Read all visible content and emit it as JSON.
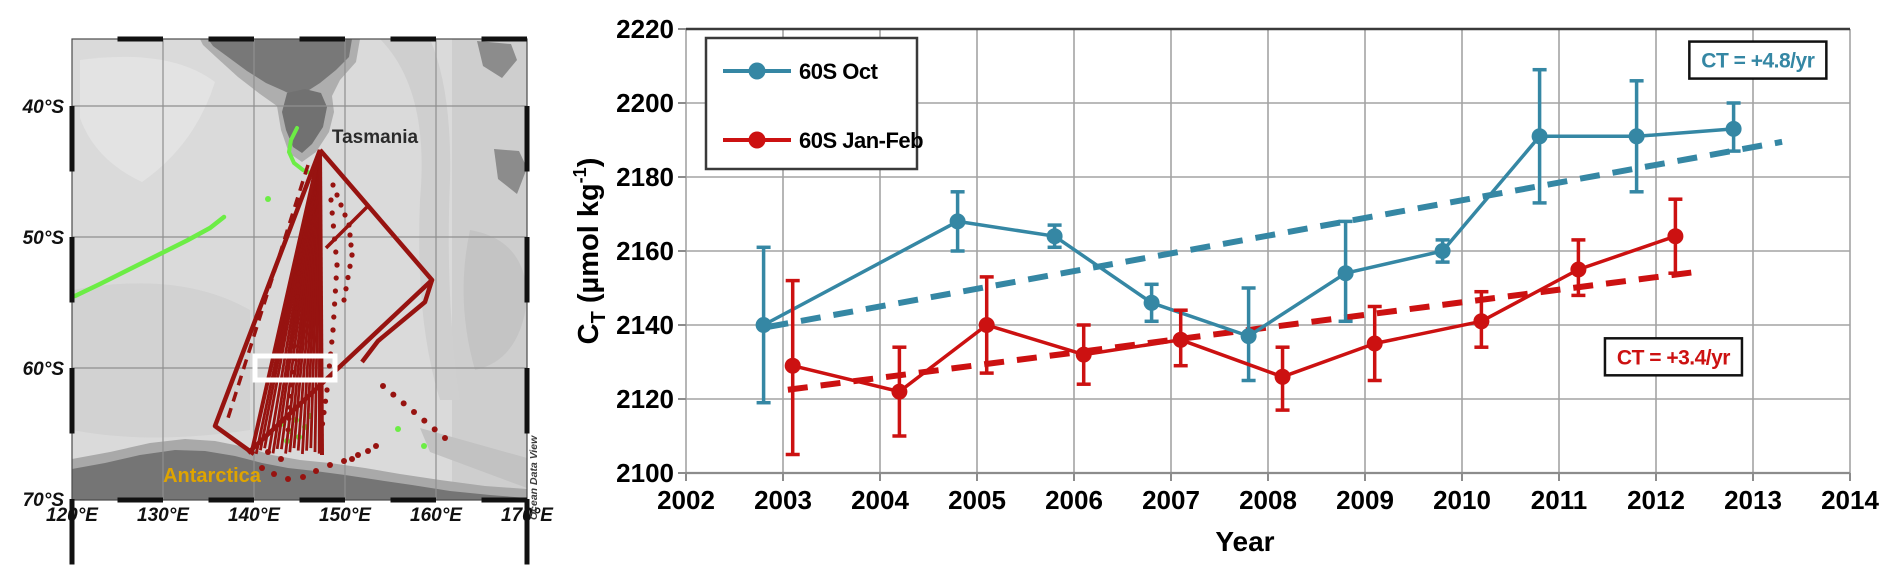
{
  "map": {
    "region_labels": {
      "tasmania": "Tasmania",
      "antarctica": "Antarctica"
    },
    "attribution": "Ocean Data View",
    "lat_ticks": [
      "40°S",
      "50°S",
      "60°S",
      "70°S"
    ],
    "lon_ticks": [
      "120°E",
      "130°E",
      "140°E",
      "150°E",
      "160°E",
      "170°E"
    ],
    "colors": {
      "ocean": "#dadada",
      "land": "#7b7b7b",
      "shelf": "#aaaaaa",
      "track": "#971310",
      "front": "#6ced45",
      "highlight_box": "#ffffff",
      "antarctica_label": "#dfa400",
      "tasmania_label": "#2b2b2b"
    }
  },
  "chart_data": {
    "type": "line",
    "title": "",
    "xlabel": "Year",
    "ylabel_parts": [
      "C",
      "T",
      " (µmol kg",
      "-1",
      ")"
    ],
    "xlim": [
      2002,
      2014
    ],
    "ylim": [
      2100,
      2220
    ],
    "xticks": [
      2002,
      2003,
      2004,
      2005,
      2006,
      2007,
      2008,
      2009,
      2010,
      2011,
      2012,
      2013,
      2014
    ],
    "yticks": [
      2100,
      2120,
      2140,
      2160,
      2180,
      2200,
      2220
    ],
    "grid": true,
    "legend_position": "top-left",
    "series": [
      {
        "name": "60S Oct",
        "color": "#3587a4",
        "points": [
          {
            "x": 2002.8,
            "y": 2140,
            "lo": 2119,
            "hi": 2161
          },
          {
            "x": 2004.8,
            "y": 2168,
            "lo": 2160,
            "hi": 2176
          },
          {
            "x": 2005.8,
            "y": 2164,
            "lo": 2161,
            "hi": 2167
          },
          {
            "x": 2006.8,
            "y": 2146,
            "lo": 2141,
            "hi": 2151
          },
          {
            "x": 2007.8,
            "y": 2137,
            "lo": 2125,
            "hi": 2150
          },
          {
            "x": 2008.8,
            "y": 2154,
            "lo": 2141,
            "hi": 2168
          },
          {
            "x": 2009.8,
            "y": 2160,
            "lo": 2157,
            "hi": 2163
          },
          {
            "x": 2010.8,
            "y": 2191,
            "lo": 2173,
            "hi": 2209
          },
          {
            "x": 2011.8,
            "y": 2191,
            "lo": 2176,
            "hi": 2206
          },
          {
            "x": 2012.8,
            "y": 2193,
            "lo": 2187,
            "hi": 2200
          }
        ]
      },
      {
        "name": "60S Jan-Feb",
        "color": "#cc1111",
        "points": [
          {
            "x": 2003.1,
            "y": 2129,
            "lo": 2105,
            "hi": 2152
          },
          {
            "x": 2004.2,
            "y": 2122,
            "lo": 2110,
            "hi": 2134
          },
          {
            "x": 2005.1,
            "y": 2140,
            "lo": 2127,
            "hi": 2153
          },
          {
            "x": 2006.1,
            "y": 2132,
            "lo": 2124,
            "hi": 2140
          },
          {
            "x": 2007.1,
            "y": 2136,
            "lo": 2129,
            "hi": 2144
          },
          {
            "x": 2008.15,
            "y": 2126,
            "lo": 2117,
            "hi": 2134
          },
          {
            "x": 2009.1,
            "y": 2135,
            "lo": 2125,
            "hi": 2145
          },
          {
            "x": 2010.2,
            "y": 2141,
            "lo": 2134,
            "hi": 2149
          },
          {
            "x": 2011.2,
            "y": 2155,
            "lo": 2148,
            "hi": 2163
          },
          {
            "x": 2012.2,
            "y": 2164,
            "lo": 2154,
            "hi": 2174
          }
        ]
      }
    ],
    "trend_lines": [
      {
        "series": "60S Oct",
        "color": "#3587a4",
        "rate_per_year": 4.8,
        "x1": 2002.85,
        "y1": 2139.5,
        "x2": 2013.3,
        "y2": 2189.5
      },
      {
        "series": "60S Jan-Feb",
        "color": "#cc1111",
        "rate_per_year": 3.4,
        "x1": 2003.05,
        "y1": 2122.5,
        "x2": 2012.4,
        "y2": 2154.3
      }
    ],
    "annotations": [
      {
        "text": "CT = +4.8/yr",
        "color": "#3587a4",
        "x": 2013.05,
        "y": 2211.6
      },
      {
        "text": "CT = +3.4/yr",
        "color": "#cc1111",
        "x": 2012.18,
        "y": 2131.4
      }
    ]
  }
}
